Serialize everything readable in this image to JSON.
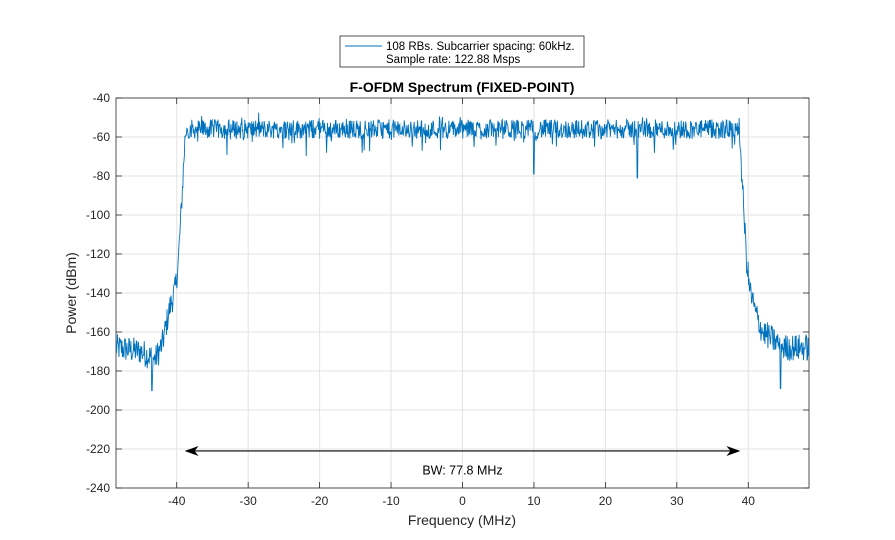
{
  "chart_data": {
    "type": "line",
    "title": "F-OFDM Spectrum (FIXED-POINT)",
    "xlabel": "Frequency (MHz)",
    "ylabel": "Power (dBm)",
    "xlim": [
      -48.5,
      48.5
    ],
    "ylim": [
      -240,
      -40
    ],
    "grid": true,
    "xticks": [
      -40,
      -30,
      -20,
      -10,
      0,
      10,
      20,
      30,
      40
    ],
    "xtick_labels": [
      "-40",
      "-30",
      "-20",
      "-10",
      "0",
      "10",
      "20",
      "30",
      "40"
    ],
    "yticks": [
      -40,
      -60,
      -80,
      -100,
      -120,
      -140,
      -160,
      -180,
      -200,
      -220,
      -240
    ],
    "ytick_labels": [
      "-40",
      "-60",
      "-80",
      "-100",
      "-120",
      "-140",
      "-160",
      "-180",
      "-200",
      "-220",
      "-240"
    ],
    "legend": {
      "placement": "top-center",
      "line1": "108 RBs. Subcarrier spacing: 60kHz.",
      "line2": "Sample rate: 122.88 Msps"
    },
    "series": [
      {
        "name": "108 RBs. Subcarrier spacing: 60kHz. Sample rate: 122.88 Msps",
        "color": "#0072BD",
        "profile": {
          "x": [
            -48.5,
            -45,
            -43,
            -42,
            -41,
            -40.2,
            -39.8,
            -39.4,
            -39.0,
            -38.8,
            -38.6,
            38.6,
            38.8,
            39.0,
            39.4,
            39.8,
            40.2,
            41,
            42,
            45,
            48.5
          ],
          "y": [
            -168,
            -170,
            -174,
            -166,
            -148,
            -138,
            -125,
            -100,
            -72,
            -58,
            -56,
            -56,
            -58,
            -72,
            -100,
            -125,
            -138,
            -150,
            -160,
            -168,
            -168
          ]
        },
        "noise_in_band_db": 5,
        "noise_out_band_db": 7,
        "dips": [
          {
            "x": 10,
            "y": -79
          },
          {
            "x": 24.5,
            "y": -81
          },
          {
            "x": -43.5,
            "y": -190
          },
          {
            "x": 44.5,
            "y": -189
          }
        ],
        "points": 1400
      }
    ],
    "annotations": [
      {
        "type": "double-arrow",
        "x_start": -38.9,
        "x_end": 38.9,
        "y": -221,
        "color": "#000000"
      },
      {
        "type": "text",
        "text": "BW: 77.8 MHz",
        "x": 0,
        "y": -231
      }
    ]
  }
}
